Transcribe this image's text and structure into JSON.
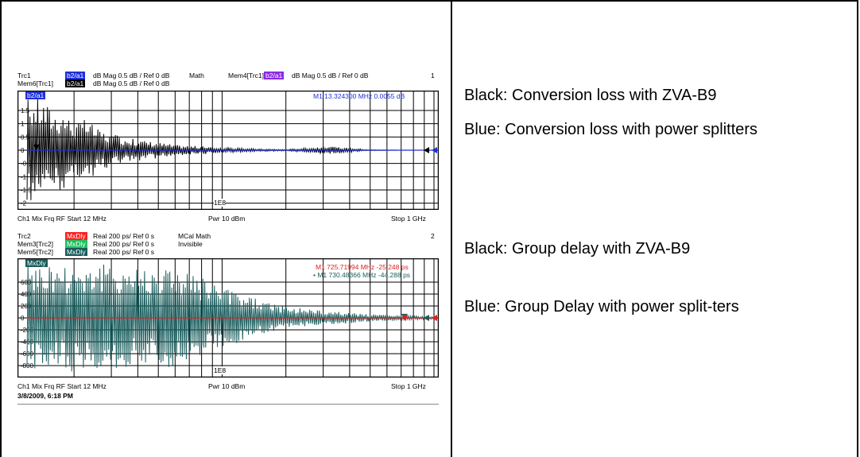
{
  "colors": {
    "trace_blue": "#1f2fd8",
    "trace_black": "#000000",
    "trace_red": "#e02020",
    "trace_teal": "#1a5c5c",
    "tag_blue": "#1f2fd8",
    "tag_purple": "#8a2be2",
    "tag_black": "#000000",
    "tag_red": "#ff2020",
    "tag_green": "#20c060"
  },
  "top": {
    "header": {
      "trc1": "Trc1",
      "trc1_meas": "b2/a1",
      "trc1_fmt": "dB Mag  0.5 dB /  Ref 0 dB",
      "math": "Math",
      "mem4": "Mem4[Trc1]",
      "mem4_meas": "b2/a1",
      "mem4_fmt": "dB Mag  0.5 dB /  Ref 0 dB",
      "num": "1",
      "mem6": "Mem6[Trc1]",
      "mem6_meas": "b2/a1",
      "mem6_fmt": "dB Mag  0.5 dB /  Ref 0 dB"
    },
    "plot_tag": "b2/a1",
    "marker_text": "M1   13.324300  MHz   0.0055  dB",
    "marker_label": "M1",
    "x_tick": "1E8",
    "footer": {
      "left": "Ch1  Mix Frq RF  Start  12 MHz",
      "center": "Pwr  10 dBm",
      "right": "Stop  1 GHz"
    }
  },
  "bottom": {
    "header": {
      "trc2": "Trc2",
      "trc2_meas": "MxDly",
      "trc2_fmt": "Real  200 ps/  Ref 0 s",
      "mcal": "MCal Math",
      "num": "2",
      "mem3": "Mem3[Trc2]",
      "mem3_meas": "MxDly",
      "mem3_fmt": "Real  200 ps/  Ref 0 s",
      "invisible": "Invisible",
      "mem5": "Mem5[Trc2]",
      "mem5_meas": "MxDly",
      "mem5_fmt": "Real  200 ps/  Ref 0 s"
    },
    "plot_tag": "MxDly",
    "marker1_text": "M1   725.71994  MHz   -25.248   ps",
    "marker2_text": "• M1   730.48366  MHz   -44.288   ps",
    "marker_label": "M1",
    "x_tick": "1E8",
    "footer": {
      "left": "Ch1  Mix Frq RF  Start  12 MHz",
      "center": "Pwr  10 dBm",
      "right": "Stop  1 GHz"
    },
    "timestamp": "3/8/2009, 6:18 PM"
  },
  "legend": {
    "l1": "Black: Conversion loss with ZVA-B9",
    "l2": "Blue: Conversion loss with power splitters",
    "l3": "Black: Group delay with ZVA-B9",
    "l4": "Blue: Group Delay with power split-ters"
  },
  "chart_data": [
    {
      "type": "line",
      "title": "",
      "xlabel": "",
      "ylabel": "",
      "x_range_mhz": [
        12,
        1000
      ],
      "x_scale": "log",
      "x_ticks": [
        "1E8"
      ],
      "y_ticks": [
        1.5,
        1.0,
        0.5,
        0,
        -0.5,
        -1.0,
        -1.5,
        -2.0
      ],
      "ylim": [
        -2.25,
        2.25
      ],
      "grid": true,
      "series": [
        {
          "x": [
            12,
            14,
            16,
            18,
            20,
            23,
            26,
            30,
            35,
            40,
            50,
            60,
            80,
            100,
            150,
            200,
            300,
            500,
            700,
            1000
          ],
          "y": [
            2.0,
            -2.0,
            1.5,
            -1.5,
            1.0,
            -1.2,
            0.8,
            -0.6,
            0.5,
            -0.4,
            0.3,
            -0.2,
            0.15,
            0.1,
            0.05,
            0.03,
            0.15,
            0.02,
            0.0,
            0.0
          ]
        },
        {
          "x": [
            12,
            1000
          ],
          "y": [
            0.0,
            0.0
          ]
        }
      ],
      "markers": [
        {
          "name": "M1",
          "x_mhz": 13.3243,
          "y_db": 0.0055
        }
      ]
    },
    {
      "type": "line",
      "title": "",
      "xlabel": "",
      "ylabel": "",
      "x_range_mhz": [
        12,
        1000
      ],
      "x_scale": "log",
      "x_ticks": [
        "1E8"
      ],
      "y_ticks": [
        600,
        400,
        200,
        0,
        -200,
        -400,
        -600,
        -800
      ],
      "ylim": [
        -1000,
        1000
      ],
      "grid": true,
      "series": [
        {
          "x": [
            12,
            15,
            20,
            30,
            40,
            60,
            80,
            100,
            150,
            200,
            300,
            500,
            700,
            1000
          ],
          "y": [
            900,
            -900,
            900,
            -900,
            850,
            -850,
            700,
            -500,
            300,
            -200,
            120,
            -60,
            40,
            -20
          ]
        },
        {
          "x": [
            12,
            1000
          ],
          "y": [
            0,
            0
          ]
        }
      ],
      "markers": [
        {
          "name": "M1",
          "x_mhz": 725.71994,
          "y_ps": -25.248
        },
        {
          "name": "M1",
          "x_mhz": 730.48366,
          "y_ps": -44.288
        }
      ]
    }
  ]
}
